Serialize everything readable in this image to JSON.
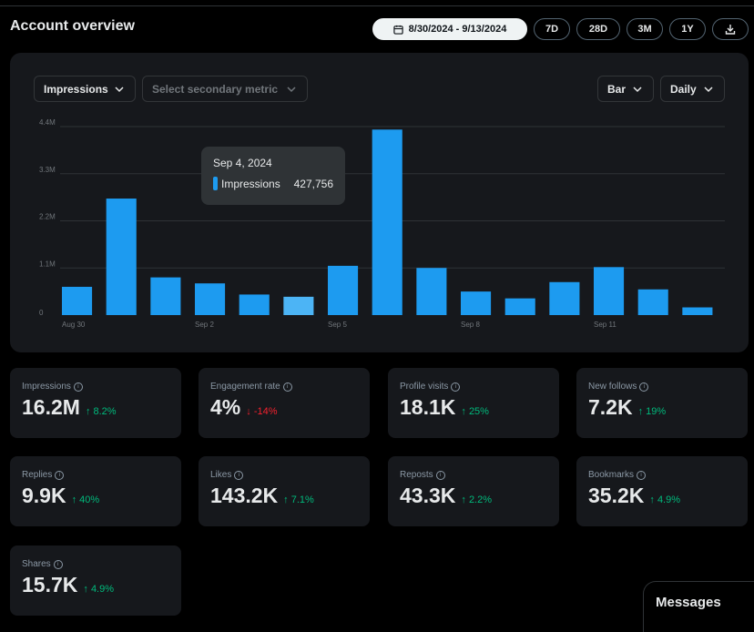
{
  "header": {
    "title": "Account overview",
    "date_range": "8/30/2024 - 9/13/2024",
    "ranges": [
      "7D",
      "28D",
      "3M",
      "1Y"
    ],
    "icons": {
      "calendar": "calendar-icon",
      "download": "download-icon"
    }
  },
  "chart_controls": {
    "primary_metric": "Impressions",
    "secondary_metric_placeholder": "Select secondary metric",
    "chart_type": "Bar",
    "granularity": "Daily"
  },
  "tooltip": {
    "date": "Sep 4, 2024",
    "metric": "Impressions",
    "value": "427,756"
  },
  "chart_data": {
    "type": "bar",
    "categories": [
      "Aug 30",
      "Aug 31",
      "Sep 1",
      "Sep 2",
      "Sep 3",
      "Sep 4",
      "Sep 5",
      "Sep 6",
      "Sep 7",
      "Sep 8",
      "Sep 9",
      "Sep 10",
      "Sep 11",
      "Sep 12",
      "Sep 13"
    ],
    "x_tick_labels": [
      "Aug 30",
      "",
      "",
      "Sep 2",
      "",
      "",
      "Sep 5",
      "",
      "",
      "Sep 8",
      "",
      "",
      "Sep 11",
      "",
      ""
    ],
    "series": [
      {
        "name": "Impressions",
        "values": [
          660000,
          2720000,
          880000,
          740000,
          480000,
          427756,
          1150000,
          4330000,
          1100000,
          550000,
          390000,
          770000,
          1120000,
          600000,
          180000
        ]
      }
    ],
    "highlight_index": 5,
    "y_ticks": [
      0,
      1100000,
      2200000,
      3300000,
      4400000
    ],
    "y_tick_labels": [
      "0",
      "1.1M",
      "2.2M",
      "3.3M",
      "4.4M"
    ],
    "ylim": [
      0,
      4400000
    ],
    "grid": true,
    "colors": {
      "bar": "#1d9bf0",
      "highlight": "#4cb4f5",
      "grid": "#2f3336"
    }
  },
  "metrics": [
    {
      "label": "Impressions",
      "value": "16.2M",
      "delta": "8.2%",
      "trend": "up"
    },
    {
      "label": "Engagement rate",
      "value": "4%",
      "delta": "-14%",
      "trend": "down"
    },
    {
      "label": "Profile visits",
      "value": "18.1K",
      "delta": "25%",
      "trend": "up"
    },
    {
      "label": "New follows",
      "value": "7.2K",
      "delta": "19%",
      "trend": "up"
    },
    {
      "label": "Replies",
      "value": "9.9K",
      "delta": "40%",
      "trend": "up"
    },
    {
      "label": "Likes",
      "value": "143.2K",
      "delta": "7.1%",
      "trend": "up"
    },
    {
      "label": "Reposts",
      "value": "43.3K",
      "delta": "2.2%",
      "trend": "up"
    },
    {
      "label": "Bookmarks",
      "value": "35.2K",
      "delta": "4.9%",
      "trend": "up"
    },
    {
      "label": "Shares",
      "value": "15.7K",
      "delta": "4.9%",
      "trend": "up"
    }
  ],
  "arrows": {
    "up": "↑",
    "down": "↓"
  },
  "messages": {
    "label": "Messages"
  }
}
